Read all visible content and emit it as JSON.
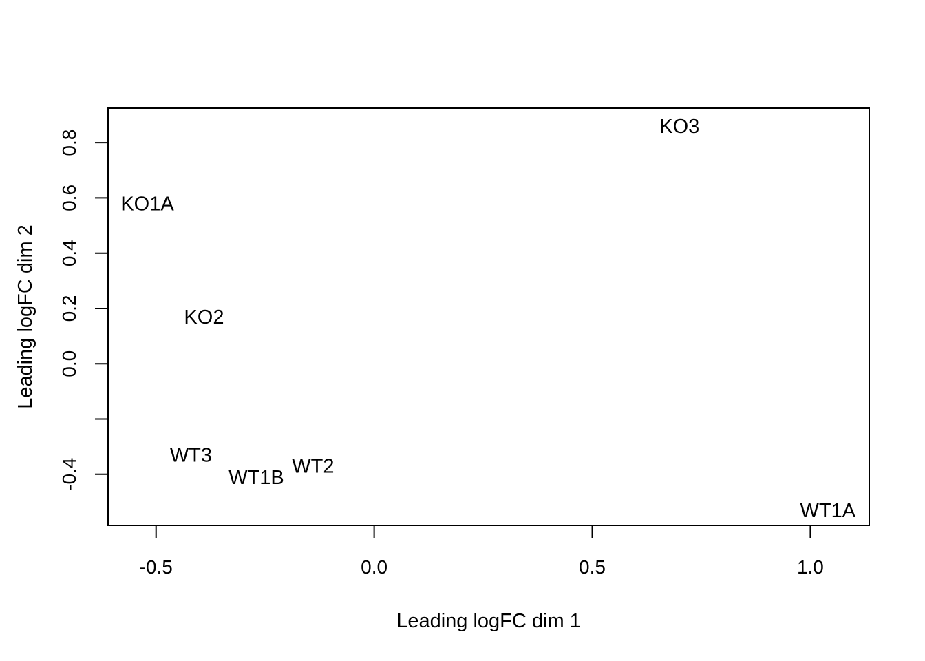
{
  "chart_data": {
    "type": "scatter",
    "marker": "text-labels",
    "xlabel": "Leading logFC dim 1",
    "ylabel": "Leading logFC dim 2",
    "xlim": [
      -0.61,
      1.135
    ],
    "ylim": [
      -0.585,
      0.925
    ],
    "x_ticks": [
      -0.5,
      0.0,
      0.5,
      1.0
    ],
    "x_tick_labels": [
      "-0.5",
      "0.0",
      "0.5",
      "1.0"
    ],
    "y_ticks": [
      -0.4,
      -0.2,
      0.0,
      0.2,
      0.4,
      0.6,
      0.8
    ],
    "y_tick_labels": [
      "-0.4",
      "",
      "0.0",
      "0.2",
      "0.4",
      "0.6",
      "0.8"
    ],
    "grid": false,
    "legend": "none",
    "points": [
      {
        "label": "KO3",
        "x": 0.7,
        "y": 0.86
      },
      {
        "label": "KO1A",
        "x": -0.52,
        "y": 0.58
      },
      {
        "label": "KO2",
        "x": -0.39,
        "y": 0.17
      },
      {
        "label": "WT3",
        "x": -0.42,
        "y": -0.33
      },
      {
        "label": "WT1B",
        "x": -0.27,
        "y": -0.41
      },
      {
        "label": "WT2",
        "x": -0.14,
        "y": -0.37
      },
      {
        "label": "WT1A",
        "x": 1.04,
        "y": -0.53
      }
    ]
  }
}
